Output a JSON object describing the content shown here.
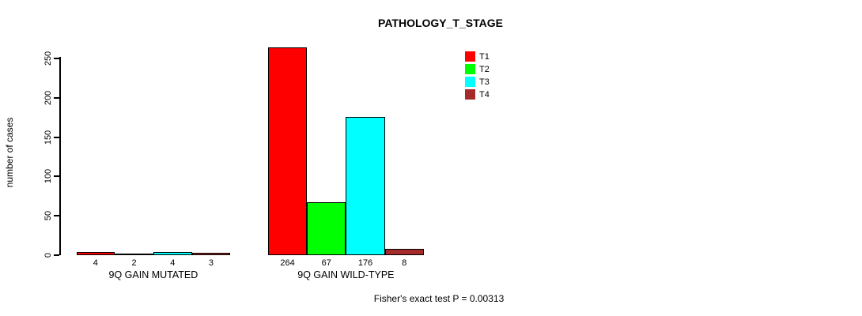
{
  "chart_data": {
    "type": "bar",
    "title": "PATHOLOGY_T_STAGE",
    "ylabel": "number of cases",
    "xlabel": "",
    "categories": [
      "9Q GAIN MUTATED",
      "9Q GAIN WILD-TYPE"
    ],
    "series": [
      {
        "name": "T1",
        "color": "#ff0000",
        "values": [
          4,
          264
        ]
      },
      {
        "name": "T2",
        "color": "#00ff00",
        "values": [
          2,
          67
        ]
      },
      {
        "name": "T3",
        "color": "#00ffff",
        "values": [
          4,
          176
        ]
      },
      {
        "name": "T4",
        "color": "#a52a2a",
        "values": [
          3,
          8
        ]
      }
    ],
    "bar_value_labels": [
      [
        "4",
        "2",
        "4",
        "3"
      ],
      [
        "264",
        "67",
        "176",
        "8"
      ]
    ],
    "yticks": [
      0,
      50,
      100,
      150,
      200,
      250
    ],
    "ylim": [
      0,
      250
    ],
    "grid": false,
    "legend": {
      "position": "top-right",
      "entries": [
        "T1",
        "T2",
        "T3",
        "T4"
      ]
    },
    "annotation": "Fisher's exact test P = 0.00313"
  }
}
